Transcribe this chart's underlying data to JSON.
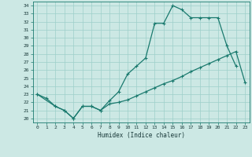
{
  "xlabel": "Humidex (Indice chaleur)",
  "bg_color": "#cce8e4",
  "grid_color": "#9ecfca",
  "line_color": "#1a7a6e",
  "xlim": [
    -0.5,
    23.5
  ],
  "ylim": [
    19.5,
    34.5
  ],
  "xticks": [
    0,
    1,
    2,
    3,
    4,
    5,
    6,
    7,
    8,
    9,
    10,
    11,
    12,
    13,
    14,
    15,
    16,
    17,
    18,
    19,
    20,
    21,
    22,
    23
  ],
  "yticks": [
    20,
    21,
    22,
    23,
    24,
    25,
    26,
    27,
    28,
    29,
    30,
    31,
    32,
    33,
    34
  ],
  "line1_x": [
    0,
    1,
    2,
    3,
    4,
    5,
    6,
    7,
    8,
    9,
    10,
    11,
    12,
    13,
    14,
    15,
    16,
    17,
    18,
    19,
    20,
    21,
    22
  ],
  "line1_y": [
    23.0,
    22.5,
    21.5,
    21.0,
    20.0,
    21.5,
    21.5,
    21.0,
    22.2,
    23.3,
    25.5,
    26.5,
    27.5,
    31.8,
    31.8,
    34.0,
    33.5,
    32.5,
    32.5,
    32.5,
    32.5,
    29.0,
    26.5
  ],
  "line2_x": [
    0,
    2,
    3,
    4,
    5,
    6,
    7,
    8,
    9,
    10,
    11,
    12,
    13,
    14,
    15,
    16,
    17,
    18,
    19,
    20,
    21,
    22,
    23
  ],
  "line2_y": [
    23.0,
    21.5,
    21.0,
    20.0,
    21.5,
    21.5,
    21.0,
    21.8,
    22.0,
    22.3,
    22.8,
    23.3,
    23.8,
    24.3,
    24.7,
    25.2,
    25.8,
    26.3,
    26.8,
    27.3,
    27.8,
    28.3,
    24.5
  ]
}
